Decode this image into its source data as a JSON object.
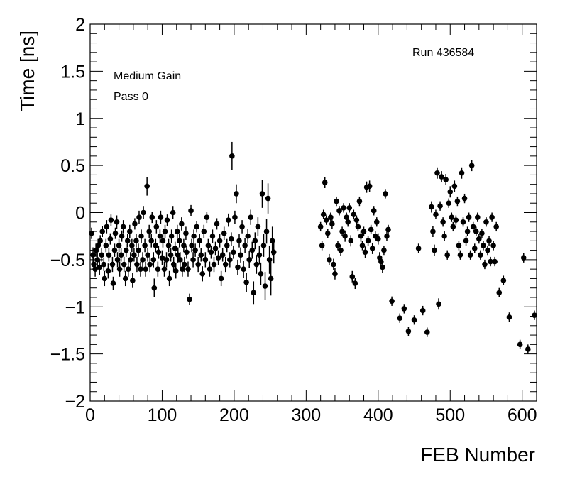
{
  "chart_data": {
    "type": "scatter",
    "title": "",
    "xlabel": "FEB Number",
    "ylabel": "Time [ns]",
    "xlim": [
      0,
      620
    ],
    "ylim": [
      -2,
      2
    ],
    "x_ticks": [
      0,
      100,
      200,
      300,
      400,
      500,
      600
    ],
    "y_ticks": [
      -2,
      -1.5,
      -1,
      -0.5,
      0,
      0.5,
      1,
      1.5,
      2
    ],
    "grid": false,
    "annotations": [
      "Medium Gain",
      "Pass 0",
      "Run 436584"
    ],
    "marker": "circle",
    "error_bars": "vertical",
    "points": [
      [
        2,
        -0.22,
        0.06
      ],
      [
        4,
        -0.45,
        0.08
      ],
      [
        5,
        -0.55,
        0.07
      ],
      [
        7,
        -0.6,
        0.08
      ],
      [
        8,
        -0.4,
        0.07
      ],
      [
        10,
        -0.5,
        0.08
      ],
      [
        11,
        -0.35,
        0.07
      ],
      [
        13,
        -0.58,
        0.08
      ],
      [
        14,
        -0.3,
        0.06
      ],
      [
        16,
        -0.45,
        0.07
      ],
      [
        17,
        -0.2,
        0.06
      ],
      [
        19,
        -0.55,
        0.07
      ],
      [
        20,
        -0.7,
        0.08
      ],
      [
        22,
        -0.35,
        0.07
      ],
      [
        23,
        -0.15,
        0.07
      ],
      [
        25,
        -0.62,
        0.08
      ],
      [
        26,
        -0.45,
        0.07
      ],
      [
        28,
        -0.28,
        0.06
      ],
      [
        29,
        -0.08,
        0.06
      ],
      [
        31,
        -0.55,
        0.08
      ],
      [
        32,
        -0.75,
        0.07
      ],
      [
        34,
        -0.4,
        0.07
      ],
      [
        35,
        -0.22,
        0.06
      ],
      [
        37,
        -0.1,
        0.07
      ],
      [
        38,
        -0.5,
        0.08
      ],
      [
        40,
        -0.35,
        0.07
      ],
      [
        41,
        -0.6,
        0.08
      ],
      [
        43,
        -0.45,
        0.07
      ],
      [
        44,
        -0.25,
        0.06
      ],
      [
        46,
        -0.15,
        0.07
      ],
      [
        47,
        -0.55,
        0.08
      ],
      [
        49,
        -0.7,
        0.08
      ],
      [
        50,
        -0.4,
        0.07
      ],
      [
        52,
        -0.3,
        0.07
      ],
      [
        53,
        -0.6,
        0.08
      ],
      [
        55,
        -0.2,
        0.07
      ],
      [
        56,
        -0.5,
        0.08
      ],
      [
        58,
        -0.35,
        0.07
      ],
      [
        59,
        -0.72,
        0.08
      ],
      [
        61,
        -0.45,
        0.07
      ],
      [
        62,
        -0.12,
        0.06
      ],
      [
        64,
        -0.3,
        0.07
      ],
      [
        65,
        -0.55,
        0.08
      ],
      [
        67,
        -0.4,
        0.07
      ],
      [
        68,
        -0.05,
        0.07
      ],
      [
        70,
        -0.6,
        0.08
      ],
      [
        71,
        -0.25,
        0.07
      ],
      [
        73,
        -0.5,
        0.08
      ],
      [
        74,
        0.0,
        0.07
      ],
      [
        76,
        -0.35,
        0.07
      ],
      [
        77,
        -0.6,
        0.08
      ],
      [
        79,
        0.28,
        0.1
      ],
      [
        80,
        -0.45,
        0.07
      ],
      [
        82,
        -0.2,
        0.07
      ],
      [
        83,
        -0.55,
        0.08
      ],
      [
        85,
        -0.3,
        0.07
      ],
      [
        86,
        -0.05,
        0.06
      ],
      [
        88,
        -0.5,
        0.08
      ],
      [
        89,
        -0.8,
        0.1
      ],
      [
        91,
        -0.35,
        0.07
      ],
      [
        92,
        -0.15,
        0.07
      ],
      [
        94,
        -0.6,
        0.08
      ],
      [
        95,
        -0.42,
        0.07
      ],
      [
        97,
        -0.25,
        0.07
      ],
      [
        98,
        -0.05,
        0.07
      ],
      [
        100,
        -0.48,
        0.08
      ],
      [
        101,
        -0.3,
        0.07
      ],
      [
        103,
        -0.6,
        0.08
      ],
      [
        104,
        -0.2,
        0.07
      ],
      [
        106,
        -0.5,
        0.08
      ],
      [
        107,
        -0.08,
        0.06
      ],
      [
        109,
        -0.35,
        0.07
      ],
      [
        110,
        -0.7,
        0.08
      ],
      [
        112,
        -0.45,
        0.07
      ],
      [
        113,
        -0.25,
        0.07
      ],
      [
        115,
        0.0,
        0.07
      ],
      [
        116,
        -0.55,
        0.08
      ],
      [
        118,
        -0.38,
        0.07
      ],
      [
        119,
        -0.62,
        0.08
      ],
      [
        121,
        -0.2,
        0.07
      ],
      [
        122,
        -0.45,
        0.08
      ],
      [
        124,
        -0.3,
        0.07
      ],
      [
        125,
        -0.5,
        0.08
      ],
      [
        127,
        -0.12,
        0.07
      ],
      [
        128,
        -0.6,
        0.08
      ],
      [
        130,
        -0.35,
        0.07
      ],
      [
        131,
        -0.55,
        0.08
      ],
      [
        133,
        -0.22,
        0.07
      ],
      [
        134,
        -0.42,
        0.07
      ],
      [
        136,
        -0.6,
        0.08
      ],
      [
        138,
        -0.92,
        0.06
      ],
      [
        140,
        0.02,
        0.06
      ],
      [
        141,
        -0.35,
        0.07
      ],
      [
        143,
        -0.5,
        0.08
      ],
      [
        144,
        -0.25,
        0.07
      ],
      [
        146,
        -0.4,
        0.07
      ],
      [
        148,
        -0.15,
        0.06
      ],
      [
        150,
        -0.55,
        0.08
      ],
      [
        152,
        -0.3,
        0.07
      ],
      [
        154,
        -0.45,
        0.07
      ],
      [
        156,
        -0.65,
        0.08
      ],
      [
        158,
        -0.2,
        0.07
      ],
      [
        160,
        -0.5,
        0.08
      ],
      [
        162,
        -0.05,
        0.06
      ],
      [
        164,
        -0.35,
        0.07
      ],
      [
        166,
        -0.6,
        0.08
      ],
      [
        168,
        -0.42,
        0.07
      ],
      [
        170,
        -0.25,
        0.07
      ],
      [
        172,
        -0.55,
        0.08
      ],
      [
        174,
        -0.38,
        0.07
      ],
      [
        176,
        -0.12,
        0.06
      ],
      [
        178,
        -0.48,
        0.08
      ],
      [
        180,
        -0.3,
        0.07
      ],
      [
        182,
        -0.7,
        0.08
      ],
      [
        184,
        -0.45,
        0.07
      ],
      [
        186,
        -0.22,
        0.07
      ],
      [
        188,
        -0.55,
        0.08
      ],
      [
        190,
        -0.35,
        0.07
      ],
      [
        192,
        -0.08,
        0.07
      ],
      [
        194,
        -0.5,
        0.08
      ],
      [
        196,
        -0.28,
        0.07
      ],
      [
        197,
        0.6,
        0.15
      ],
      [
        199,
        -0.42,
        0.07
      ],
      [
        201,
        -0.05,
        0.07
      ],
      [
        203,
        0.2,
        0.1
      ],
      [
        205,
        -0.58,
        0.08
      ],
      [
        207,
        -0.3,
        0.07
      ],
      [
        209,
        -0.45,
        0.08
      ],
      [
        211,
        -0.15,
        0.07
      ],
      [
        213,
        -0.6,
        0.09
      ],
      [
        215,
        -0.35,
        0.08
      ],
      [
        217,
        -0.74,
        0.1
      ],
      [
        219,
        -0.25,
        0.08
      ],
      [
        221,
        -0.5,
        0.09
      ],
      [
        223,
        -0.05,
        0.08
      ],
      [
        225,
        -0.4,
        0.09
      ],
      [
        227,
        -0.85,
        0.12
      ],
      [
        229,
        -0.3,
        0.09
      ],
      [
        231,
        -0.55,
        0.1
      ],
      [
        233,
        -0.15,
        0.1
      ],
      [
        235,
        -0.45,
        0.1
      ],
      [
        237,
        -0.65,
        0.12
      ],
      [
        239,
        0.2,
        0.15
      ],
      [
        241,
        -0.35,
        0.12
      ],
      [
        243,
        -0.78,
        0.15
      ],
      [
        245,
        -0.2,
        0.13
      ],
      [
        247,
        0.15,
        0.16
      ],
      [
        249,
        -0.5,
        0.15
      ],
      [
        251,
        -0.7,
        0.18
      ],
      [
        253,
        -0.3,
        0.15
      ],
      [
        255,
        -0.42,
        0.12
      ],
      [
        320,
        -0.15,
        0.05
      ],
      [
        322,
        -0.35,
        0.05
      ],
      [
        324,
        -0.02,
        0.05
      ],
      [
        326,
        0.32,
        0.06
      ],
      [
        328,
        -0.08,
        0.05
      ],
      [
        330,
        -0.22,
        0.05
      ],
      [
        332,
        -0.5,
        0.06
      ],
      [
        334,
        -0.05,
        0.05
      ],
      [
        336,
        -0.12,
        0.05
      ],
      [
        338,
        -0.55,
        0.06
      ],
      [
        340,
        -0.65,
        0.06
      ],
      [
        342,
        0.12,
        0.05
      ],
      [
        344,
        -0.35,
        0.05
      ],
      [
        346,
        0.02,
        0.05
      ],
      [
        348,
        -0.4,
        0.06
      ],
      [
        350,
        -0.2,
        0.05
      ],
      [
        352,
        0.05,
        0.05
      ],
      [
        354,
        -0.25,
        0.06
      ],
      [
        356,
        -0.05,
        0.05
      ],
      [
        358,
        -0.1,
        0.05
      ],
      [
        360,
        0.05,
        0.05
      ],
      [
        362,
        -0.3,
        0.06
      ],
      [
        364,
        -0.68,
        0.06
      ],
      [
        366,
        -0.02,
        0.05
      ],
      [
        368,
        -0.75,
        0.06
      ],
      [
        370,
        -0.08,
        0.05
      ],
      [
        372,
        -0.15,
        0.05
      ],
      [
        374,
        0.12,
        0.05
      ],
      [
        376,
        -0.25,
        0.06
      ],
      [
        378,
        -0.35,
        0.05
      ],
      [
        380,
        -0.2,
        0.05
      ],
      [
        382,
        -0.42,
        0.06
      ],
      [
        384,
        0.27,
        0.06
      ],
      [
        386,
        -0.3,
        0.05
      ],
      [
        388,
        0.28,
        0.06
      ],
      [
        390,
        -0.18,
        0.05
      ],
      [
        392,
        -0.38,
        0.06
      ],
      [
        394,
        0.02,
        0.05
      ],
      [
        396,
        -0.25,
        0.05
      ],
      [
        398,
        -0.1,
        0.05
      ],
      [
        400,
        -0.28,
        0.06
      ],
      [
        402,
        -0.48,
        0.06
      ],
      [
        404,
        -0.52,
        0.06
      ],
      [
        406,
        -0.58,
        0.06
      ],
      [
        408,
        -0.4,
        0.05
      ],
      [
        410,
        0.2,
        0.05
      ],
      [
        412,
        -0.25,
        0.05
      ],
      [
        414,
        -0.18,
        0.05
      ],
      [
        419,
        -0.94,
        0.05
      ],
      [
        430,
        -1.12,
        0.05
      ],
      [
        436,
        -1.02,
        0.05
      ],
      [
        442,
        -1.26,
        0.05
      ],
      [
        450,
        -1.14,
        0.05
      ],
      [
        456,
        -0.38,
        0.05
      ],
      [
        462,
        -1.04,
        0.05
      ],
      [
        468,
        -1.27,
        0.05
      ],
      [
        474,
        0.06,
        0.06
      ],
      [
        476,
        -0.2,
        0.06
      ],
      [
        478,
        -0.4,
        0.06
      ],
      [
        480,
        -0.02,
        0.05
      ],
      [
        482,
        0.42,
        0.06
      ],
      [
        484,
        -0.97,
        0.06
      ],
      [
        486,
        0.07,
        0.05
      ],
      [
        488,
        0.38,
        0.06
      ],
      [
        490,
        -0.1,
        0.05
      ],
      [
        492,
        -0.25,
        0.05
      ],
      [
        494,
        0.35,
        0.06
      ],
      [
        496,
        -0.45,
        0.05
      ],
      [
        498,
        0.1,
        0.05
      ],
      [
        500,
        0.22,
        0.06
      ],
      [
        502,
        -0.05,
        0.05
      ],
      [
        504,
        -0.15,
        0.05
      ],
      [
        506,
        0.28,
        0.06
      ],
      [
        508,
        -0.08,
        0.05
      ],
      [
        510,
        0.12,
        0.05
      ],
      [
        512,
        -0.35,
        0.05
      ],
      [
        514,
        -0.45,
        0.05
      ],
      [
        516,
        0.42,
        0.06
      ],
      [
        518,
        -0.1,
        0.05
      ],
      [
        520,
        0.15,
        0.05
      ],
      [
        522,
        -0.3,
        0.05
      ],
      [
        524,
        -0.2,
        0.05
      ],
      [
        526,
        -0.05,
        0.05
      ],
      [
        528,
        -0.45,
        0.05
      ],
      [
        530,
        0.5,
        0.06
      ],
      [
        532,
        -0.15,
        0.05
      ],
      [
        534,
        -0.38,
        0.05
      ],
      [
        536,
        -0.2,
        0.05
      ],
      [
        538,
        -0.05,
        0.05
      ],
      [
        540,
        -0.28,
        0.05
      ],
      [
        542,
        -0.45,
        0.05
      ],
      [
        544,
        -0.22,
        0.05
      ],
      [
        546,
        -0.35,
        0.05
      ],
      [
        548,
        -0.55,
        0.05
      ],
      [
        550,
        -0.1,
        0.05
      ],
      [
        552,
        -0.4,
        0.05
      ],
      [
        554,
        -0.3,
        0.05
      ],
      [
        556,
        -0.52,
        0.05
      ],
      [
        558,
        -0.05,
        0.05
      ],
      [
        560,
        -0.35,
        0.05
      ],
      [
        562,
        -0.52,
        0.05
      ],
      [
        564,
        -0.15,
        0.05
      ],
      [
        568,
        -0.85,
        0.05
      ],
      [
        574,
        -0.72,
        0.05
      ],
      [
        582,
        -1.11,
        0.05
      ],
      [
        597,
        -1.4,
        0.05
      ],
      [
        602,
        -0.48,
        0.05
      ],
      [
        608,
        -1.45,
        0.05
      ],
      [
        617,
        -1.09,
        0.05
      ]
    ]
  }
}
